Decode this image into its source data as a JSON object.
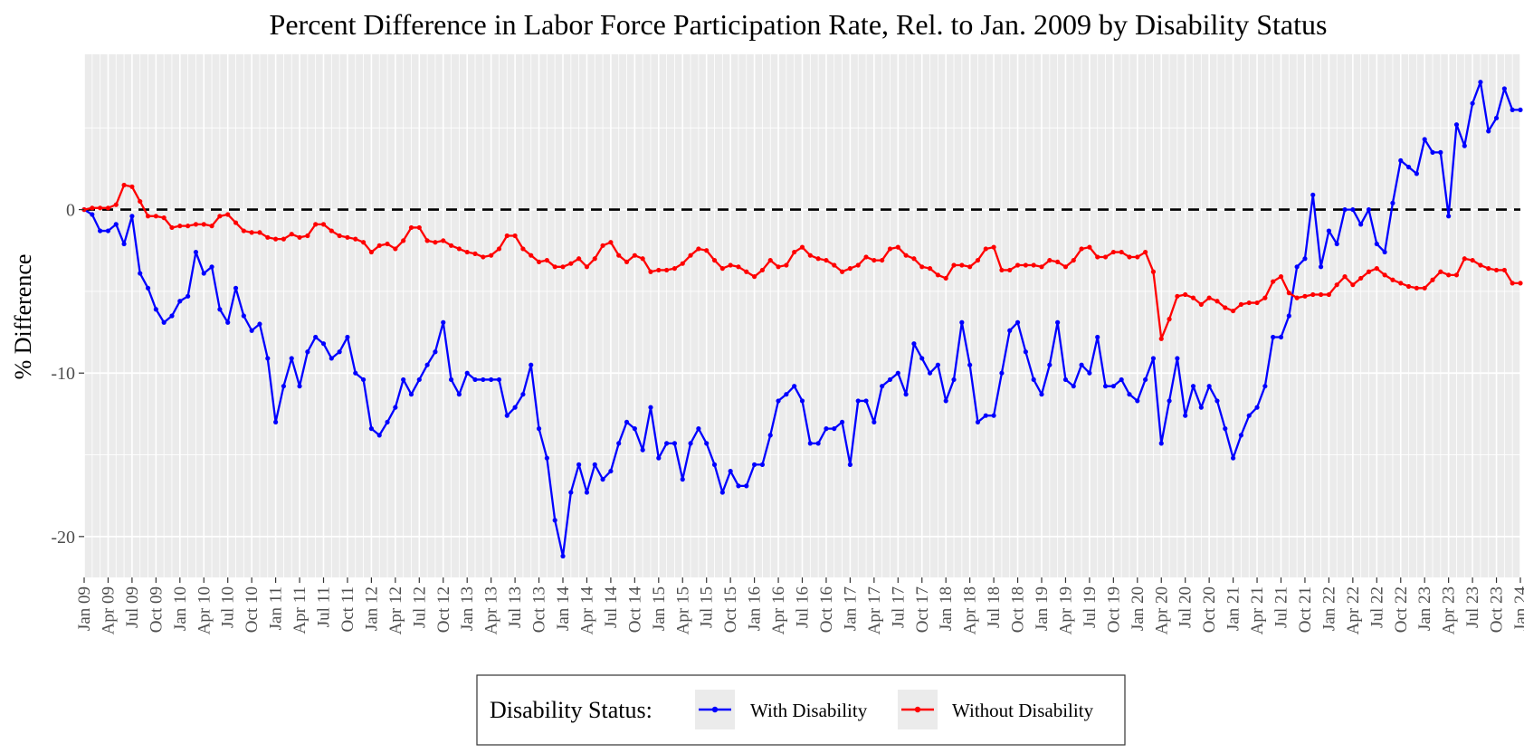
{
  "chart_data": {
    "type": "line",
    "title": "Percent Difference in Labor Force Participation Rate, Rel. to Jan. 2009 by Disability Status",
    "xlabel": "",
    "ylabel": "% Difference",
    "x_start": "2009-01",
    "x_end": "2024-01",
    "xtick_labels": [
      "Jan 09",
      "Apr 09",
      "Jul 09",
      "Oct 09",
      "Jan 10",
      "Apr 10",
      "Jul 10",
      "Oct 10",
      "Jan 11",
      "Apr 11",
      "Jul 11",
      "Oct 11",
      "Jan 12",
      "Apr 12",
      "Jul 12",
      "Oct 12",
      "Jan 13",
      "Apr 13",
      "Jul 13",
      "Oct 13",
      "Jan 14",
      "Apr 14",
      "Jul 14",
      "Oct 14",
      "Jan 15",
      "Apr 15",
      "Jul 15",
      "Oct 15",
      "Jan 16",
      "Apr 16",
      "Jul 16",
      "Oct 16",
      "Jan 17",
      "Apr 17",
      "Jul 17",
      "Oct 17",
      "Jan 18",
      "Apr 18",
      "Jul 18",
      "Oct 18",
      "Jan 19",
      "Apr 19",
      "Jul 19",
      "Oct 19",
      "Jan 20",
      "Apr 20",
      "Jul 20",
      "Oct 20",
      "Jan 21",
      "Apr 21",
      "Jul 21",
      "Oct 21",
      "Jan 22",
      "Apr 22",
      "Jul 22",
      "Oct 22",
      "Jan 23",
      "Apr 23",
      "Jul 23",
      "Oct 23",
      "Jan 24"
    ],
    "yticks": [
      0,
      -10,
      -20
    ],
    "ylim": [
      -22.5,
      9.5
    ],
    "reference_line": 0,
    "grid": true,
    "legend": {
      "title": "Disability Status:",
      "position": "bottom"
    },
    "series": [
      {
        "name": "With Disability",
        "color": "#0000FF",
        "values": [
          0.0,
          -0.3,
          -1.3,
          -1.3,
          -0.9,
          -2.1,
          -0.4,
          -3.9,
          -4.8,
          -6.1,
          -6.9,
          -6.5,
          -5.6,
          -5.3,
          -2.6,
          -3.9,
          -3.5,
          -6.1,
          -6.9,
          -4.8,
          -6.5,
          -7.4,
          -7.0,
          -9.1,
          -13.0,
          -10.8,
          -9.1,
          -10.8,
          -8.7,
          -7.8,
          -8.2,
          -9.1,
          -8.7,
          -7.8,
          -10.0,
          -10.4,
          -13.4,
          -13.8,
          -13.0,
          -12.1,
          -10.4,
          -11.3,
          -10.4,
          -9.5,
          -8.7,
          -6.9,
          -10.4,
          -11.3,
          -10.0,
          -10.4,
          -10.4,
          -10.4,
          -10.4,
          -12.6,
          -12.1,
          -11.3,
          -9.5,
          -13.4,
          -15.2,
          -19.0,
          -21.2,
          -17.3,
          -15.6,
          -17.3,
          -15.6,
          -16.5,
          -16.0,
          -14.3,
          -13.0,
          -13.4,
          -14.7,
          -12.1,
          -15.2,
          -14.3,
          -14.3,
          -16.5,
          -14.3,
          -13.4,
          -14.3,
          -15.6,
          -17.3,
          -16.0,
          -16.9,
          -16.9,
          -15.6,
          -15.6,
          -13.8,
          -11.7,
          -11.3,
          -10.8,
          -11.7,
          -14.3,
          -14.3,
          -13.4,
          -13.4,
          -13.0,
          -15.6,
          -11.7,
          -11.7,
          -13.0,
          -10.8,
          -10.4,
          -10.0,
          -11.3,
          -8.2,
          -9.1,
          -10.0,
          -9.5,
          -11.7,
          -10.4,
          -6.9,
          -9.5,
          -13.0,
          -12.6,
          -12.6,
          -10.0,
          -7.4,
          -6.9,
          -8.7,
          -10.4,
          -11.3,
          -9.5,
          -6.9,
          -10.4,
          -10.8,
          -9.5,
          -10.0,
          -7.8,
          -10.8,
          -10.8,
          -10.4,
          -11.3,
          -11.7,
          -10.4,
          -9.1,
          -14.3,
          -11.7,
          -9.1,
          -12.6,
          -10.8,
          -12.1,
          -10.8,
          -11.7,
          -13.4,
          -15.2,
          -13.8,
          -12.6,
          -12.1,
          -10.8,
          -7.8,
          -7.8,
          -6.5,
          -3.5,
          -3.0,
          0.9,
          -3.5,
          -1.3,
          -2.1,
          0.0,
          0.0,
          -0.9,
          0.0,
          -2.1,
          -2.6,
          0.4,
          3.0,
          2.6,
          2.2,
          4.3,
          3.5,
          3.5,
          -0.4,
          5.2,
          3.9,
          6.5,
          7.8,
          4.8,
          5.6,
          7.4,
          6.1,
          6.1
        ]
      },
      {
        "name": "Without Disability",
        "color": "#FF0000",
        "values": [
          0.0,
          0.1,
          0.1,
          0.1,
          0.3,
          1.5,
          1.4,
          0.5,
          -0.4,
          -0.4,
          -0.5,
          -1.1,
          -1.0,
          -1.0,
          -0.9,
          -0.9,
          -1.0,
          -0.4,
          -0.3,
          -0.8,
          -1.3,
          -1.4,
          -1.4,
          -1.7,
          -1.8,
          -1.8,
          -1.5,
          -1.7,
          -1.6,
          -0.9,
          -0.9,
          -1.3,
          -1.6,
          -1.7,
          -1.8,
          -2.0,
          -2.6,
          -2.2,
          -2.1,
          -2.4,
          -1.9,
          -1.1,
          -1.1,
          -1.9,
          -2.0,
          -1.9,
          -2.2,
          -2.4,
          -2.6,
          -2.7,
          -2.9,
          -2.8,
          -2.4,
          -1.6,
          -1.6,
          -2.4,
          -2.8,
          -3.2,
          -3.1,
          -3.5,
          -3.5,
          -3.3,
          -3.0,
          -3.5,
          -3.0,
          -2.2,
          -2.0,
          -2.8,
          -3.2,
          -2.8,
          -3.0,
          -3.8,
          -3.7,
          -3.7,
          -3.6,
          -3.3,
          -2.8,
          -2.4,
          -2.5,
          -3.1,
          -3.6,
          -3.4,
          -3.5,
          -3.8,
          -4.1,
          -3.7,
          -3.1,
          -3.5,
          -3.4,
          -2.6,
          -2.3,
          -2.8,
          -3.0,
          -3.1,
          -3.4,
          -3.8,
          -3.6,
          -3.4,
          -2.9,
          -3.1,
          -3.1,
          -2.4,
          -2.3,
          -2.8,
          -3.0,
          -3.5,
          -3.6,
          -4.0,
          -4.2,
          -3.4,
          -3.4,
          -3.5,
          -3.1,
          -2.4,
          -2.3,
          -3.7,
          -3.7,
          -3.4,
          -3.4,
          -3.4,
          -3.5,
          -3.1,
          -3.2,
          -3.5,
          -3.1,
          -2.4,
          -2.3,
          -2.9,
          -2.9,
          -2.6,
          -2.6,
          -2.9,
          -2.9,
          -2.6,
          -3.8,
          -7.9,
          -6.7,
          -5.3,
          -5.2,
          -5.4,
          -5.8,
          -5.4,
          -5.6,
          -6.0,
          -6.2,
          -5.8,
          -5.7,
          -5.7,
          -5.4,
          -4.4,
          -4.1,
          -5.1,
          -5.4,
          -5.3,
          -5.2,
          -5.2,
          -5.2,
          -4.6,
          -4.1,
          -4.6,
          -4.2,
          -3.8,
          -3.6,
          -4.0,
          -4.3,
          -4.5,
          -4.7,
          -4.8,
          -4.8,
          -4.3,
          -3.8,
          -4.0,
          -4.0,
          -3.0,
          -3.1,
          -3.4,
          -3.6,
          -3.7,
          -3.7,
          -4.5,
          -4.5
        ]
      }
    ]
  }
}
